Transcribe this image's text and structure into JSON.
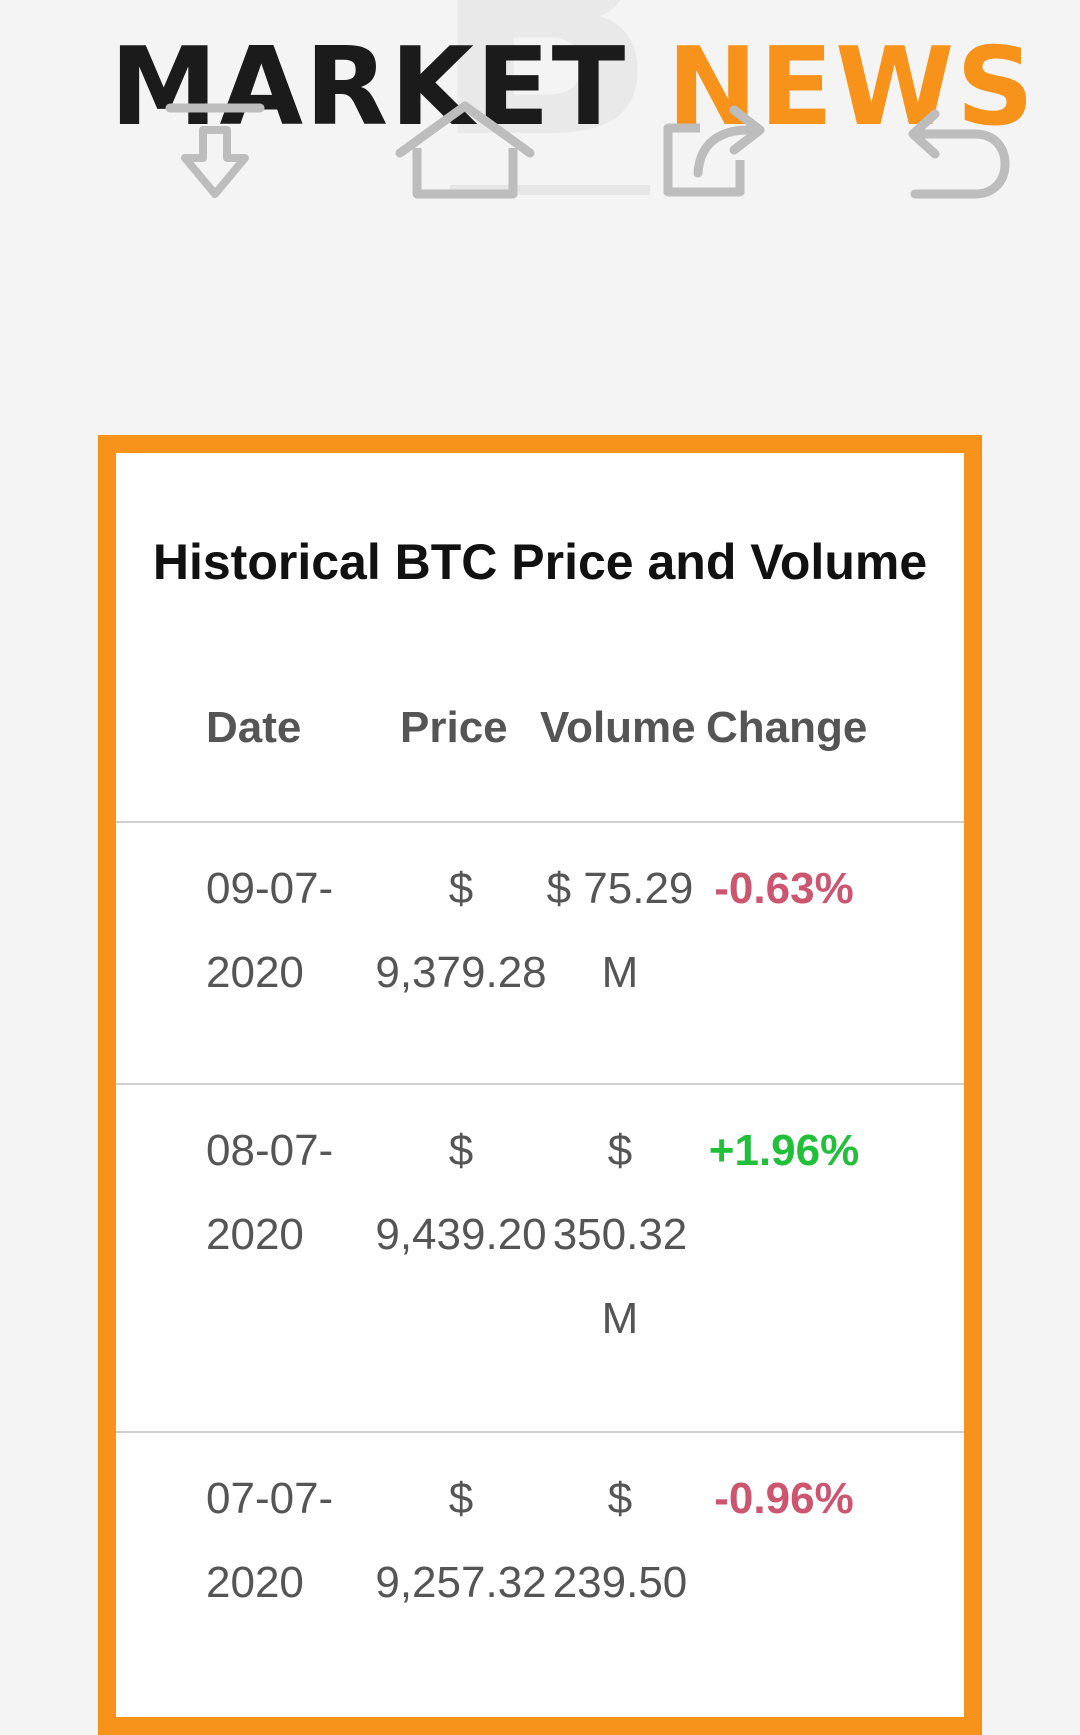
{
  "brand": {
    "word1": "MARKET",
    "word2": "NEWS",
    "watermark": "B"
  },
  "nav": {
    "icons": [
      "download-icon",
      "home-icon",
      "share-icon",
      "back-icon"
    ]
  },
  "table": {
    "title": "Historical BTC Price and Volume",
    "headers": {
      "date": "Date",
      "price": "Price",
      "volume": "Volume",
      "change": "Change"
    },
    "rows": [
      {
        "date_l1": "09-07-",
        "date_l2": "2020",
        "price_l1": "$",
        "price_l2": "9,379.28",
        "vol_l1": "$ 75.29",
        "vol_l2": "M",
        "vol_l3": "",
        "change": "-0.63%",
        "change_dir": "neg"
      },
      {
        "date_l1": "08-07-",
        "date_l2": "2020",
        "price_l1": "$",
        "price_l2": "9,439.20",
        "vol_l1": "$",
        "vol_l2": "350.32",
        "vol_l3": "M",
        "change": "+1.96%",
        "change_dir": "pos"
      },
      {
        "date_l1": "07-07-",
        "date_l2": "2020",
        "price_l1": "$",
        "price_l2": "9,257.32",
        "vol_l1": "$",
        "vol_l2": "239.50",
        "vol_l3": "",
        "change": "-0.96%",
        "change_dir": "neg"
      }
    ]
  },
  "colors": {
    "accent": "#f7931a",
    "negative": "#cc5570",
    "positive": "#22bf3b"
  }
}
